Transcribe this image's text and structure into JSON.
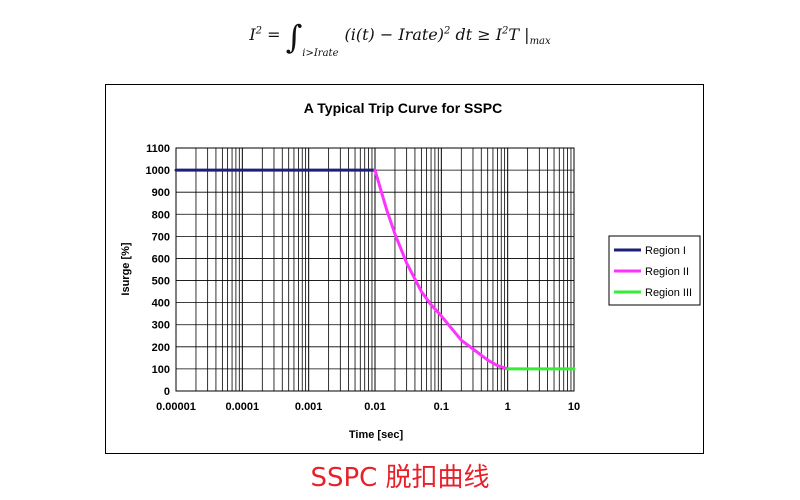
{
  "formula": {
    "lhs": "I",
    "lhs_sup": "2",
    "eq": " = ",
    "integral": "∫",
    "sub": "i>Irate",
    "integrand": "(i(t) − Irate)",
    "integrand_sup": "2",
    "dt": "dt ≥ I",
    "rhs_sup": "2",
    "rhs_tail": "T |",
    "rhs_sub": "max"
  },
  "caption": "SSPC 脱扣曲线",
  "colors": {
    "region1": "#1f1f7a",
    "region2": "#ff33ff",
    "region3": "#33ee33",
    "caption": "#e8202a"
  },
  "chart_data": {
    "type": "line",
    "title": "A Typical Trip Curve for SSPC",
    "xlabel": "Time [sec]",
    "ylabel": "Isurge [%]",
    "xscale": "log",
    "xlim": [
      1e-05,
      10
    ],
    "ylim": [
      0,
      1100
    ],
    "xticks": [
      "0.00001",
      "0.0001",
      "0.001",
      "0.01",
      "0.1",
      "1",
      "10"
    ],
    "yticks": [
      "0",
      "100",
      "200",
      "300",
      "400",
      "500",
      "600",
      "700",
      "800",
      "900",
      "1000",
      "1100"
    ],
    "grid": true,
    "legend_position": "right",
    "series": [
      {
        "name": "Region I",
        "color": "#1f1f7a",
        "x": [
          1e-05,
          0.01
        ],
        "y": [
          1000,
          1000
        ]
      },
      {
        "name": "Region II",
        "color": "#ff33ff",
        "x": [
          0.01,
          0.015,
          0.02,
          0.03,
          0.05,
          0.07,
          0.1,
          0.2,
          0.3,
          0.5,
          0.7,
          1
        ],
        "y": [
          1000,
          820,
          710,
          580,
          450,
          390,
          340,
          230,
          190,
          140,
          115,
          100
        ]
      },
      {
        "name": "Region III",
        "color": "#33ee33",
        "x": [
          1,
          10
        ],
        "y": [
          100,
          100
        ]
      }
    ]
  }
}
